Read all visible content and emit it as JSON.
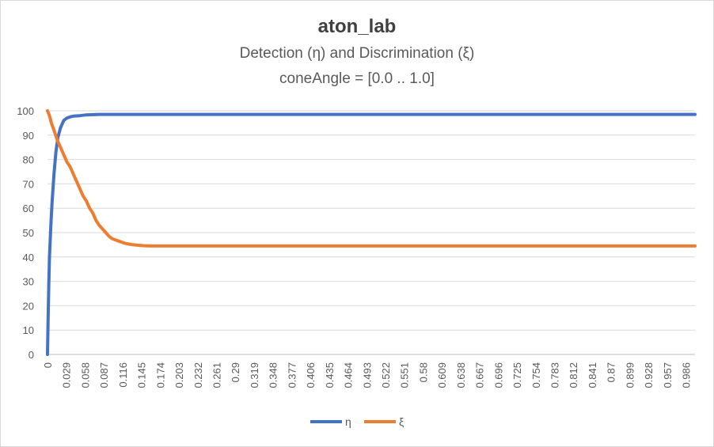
{
  "chart_data": {
    "type": "line",
    "title": "aton_lab",
    "subtitle": [
      "Detection (η) and Discrimination (ξ)",
      "coneAngle = [0.0 .. 1.0]"
    ],
    "xlabel": "",
    "ylabel": "",
    "xlim": [
      0,
      1.0
    ],
    "ylim": [
      0,
      100
    ],
    "y_ticks": [
      "0",
      "10",
      "20",
      "30",
      "40",
      "50",
      "60",
      "70",
      "80",
      "90",
      "100"
    ],
    "x_ticks": [
      "0",
      "0.029",
      "0.058",
      "0.087",
      "0.116",
      "0.145",
      "0.174",
      "0.203",
      "0.232",
      "0.261",
      "0.29",
      "0.319",
      "0.348",
      "0.377",
      "0.406",
      "0.435",
      "0.464",
      "0.493",
      "0.522",
      "0.551",
      "0.58",
      "0.609",
      "0.638",
      "0.667",
      "0.696",
      "0.725",
      "0.754",
      "0.783",
      "0.812",
      "0.841",
      "0.87",
      "0.899",
      "0.928",
      "0.957",
      "0.986"
    ],
    "grid": true,
    "legend_position": "bottom",
    "series": [
      {
        "name": "η",
        "color": "#4472c4",
        "x": [
          0,
          0.001,
          0.002,
          0.003,
          0.005,
          0.007,
          0.01,
          0.013,
          0.016,
          0.02,
          0.025,
          0.03,
          0.035,
          0.04,
          0.05,
          0.06,
          0.08,
          0.1,
          0.15,
          0.2,
          0.3,
          0.5,
          0.7,
          0.9,
          1.0
        ],
        "y": [
          0,
          15,
          28,
          40,
          52,
          62,
          74,
          83,
          89,
          93,
          96,
          97,
          97.5,
          97.8,
          98,
          98.3,
          98.5,
          98.5,
          98.5,
          98.5,
          98.5,
          98.5,
          98.5,
          98.5,
          98.5
        ]
      },
      {
        "name": "ξ",
        "color": "#ed7d31",
        "x": [
          0,
          0.003,
          0.006,
          0.01,
          0.015,
          0.02,
          0.025,
          0.03,
          0.035,
          0.04,
          0.045,
          0.05,
          0.055,
          0.06,
          0.065,
          0.07,
          0.075,
          0.08,
          0.085,
          0.09,
          0.095,
          0.1,
          0.11,
          0.12,
          0.13,
          0.14,
          0.15,
          0.16,
          0.2,
          0.4,
          0.6,
          0.8,
          1.0
        ],
        "y": [
          100,
          98,
          95,
          92,
          88,
          85,
          82,
          79,
          77,
          74,
          71,
          68,
          65,
          63,
          60,
          58,
          55,
          53,
          51.5,
          50,
          48.5,
          47.5,
          46.5,
          45.6,
          45.1,
          44.8,
          44.6,
          44.5,
          44.5,
          44.5,
          44.5,
          44.5,
          44.5
        ]
      }
    ]
  }
}
